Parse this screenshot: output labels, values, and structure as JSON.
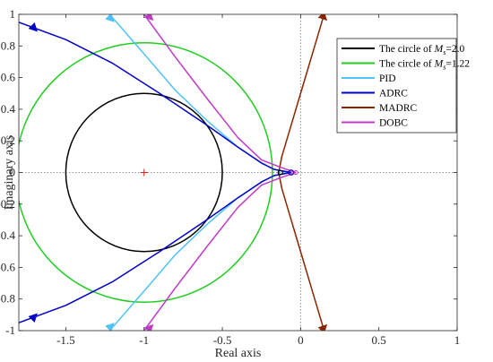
{
  "chart_data": {
    "type": "line",
    "title": "",
    "xlabel": "Real axis",
    "ylabel": "Imaginary axis",
    "xlim": [
      -1.8,
      1
    ],
    "ylim": [
      -1,
      1
    ],
    "xticks": [
      -1.5,
      -1,
      -0.5,
      0,
      0.5,
      1
    ],
    "xtick_labels": [
      "-1.5",
      "-1",
      "-0.5",
      "0",
      "0.5",
      "1"
    ],
    "yticks": [
      -1,
      -0.8,
      -0.6,
      -0.4,
      -0.2,
      0,
      0.2,
      0.4,
      0.6,
      0.8,
      1
    ],
    "ytick_labels": [
      "-1",
      "-0.8",
      "-0.6",
      "-0.4",
      "-0.2",
      "0",
      "0.2",
      "0.4",
      "0.6",
      "0.8",
      "1"
    ],
    "grid": false,
    "legend_position": "top-right",
    "critical_point": [
      -1,
      0
    ],
    "series": [
      {
        "name": "The circle of M_s=2.0",
        "legend": {
          "prefix": "The circle of ",
          "var": "M",
          "sub": "s",
          "suffix": "=2.0"
        },
        "kind": "circle",
        "center": [
          -1,
          0
        ],
        "radius": 0.5,
        "color": "#000000"
      },
      {
        "name": "The circle of M_s=1.22",
        "legend": {
          "prefix": "The circle of ",
          "var": "M",
          "sub": "s",
          "suffix": "=1.22"
        },
        "kind": "circle",
        "center": [
          -1,
          0
        ],
        "radius": 0.82,
        "color": "#22cc22"
      },
      {
        "name": "PID",
        "legend": {
          "prefix": "PID"
        },
        "kind": "curve",
        "color": "#4fc3f7",
        "mirror": true,
        "points": [
          [
            -1.22,
            1.0
          ],
          [
            -1.0,
            0.75
          ],
          [
            -0.8,
            0.52
          ],
          [
            -0.6,
            0.33
          ],
          [
            -0.4,
            0.16
          ],
          [
            -0.25,
            0.06
          ],
          [
            -0.17,
            0.02
          ],
          [
            -0.08,
            0.0
          ]
        ],
        "arrows": [
          [
            -1.21,
            0.97
          ]
        ]
      },
      {
        "name": "ADRC",
        "legend": {
          "prefix": "ADRC"
        },
        "kind": "curve",
        "color": "#0000c8",
        "mirror": true,
        "points": [
          [
            -1.8,
            0.95
          ],
          [
            -1.5,
            0.84
          ],
          [
            -1.2,
            0.69
          ],
          [
            -0.9,
            0.5
          ],
          [
            -0.6,
            0.3
          ],
          [
            -0.4,
            0.16
          ],
          [
            -0.25,
            0.06
          ],
          [
            -0.17,
            0.02
          ],
          [
            -0.06,
            0.0
          ]
        ],
        "arrows": [
          [
            -1.7,
            0.91
          ]
        ]
      },
      {
        "name": "MADRC",
        "legend": {
          "prefix": "MADRC"
        },
        "kind": "curve",
        "color": "#8b2500",
        "mirror": true,
        "points": [
          [
            0.15,
            1.0
          ],
          [
            0.09,
            0.8
          ],
          [
            0.03,
            0.6
          ],
          [
            -0.03,
            0.4
          ],
          [
            -0.09,
            0.2
          ],
          [
            -0.12,
            0.1
          ],
          [
            -0.14,
            0.0
          ]
        ],
        "arrows": [
          [
            0.15,
            0.98
          ]
        ]
      },
      {
        "name": "DOBC",
        "legend": {
          "prefix": "DOBC"
        },
        "kind": "curve",
        "color": "#c03ac8",
        "mirror": true,
        "points": [
          [
            -1.0,
            1.0
          ],
          [
            -0.8,
            0.73
          ],
          [
            -0.6,
            0.47
          ],
          [
            -0.4,
            0.22
          ],
          [
            -0.25,
            0.08
          ],
          [
            -0.12,
            0.03
          ],
          [
            -0.03,
            0.0
          ]
        ],
        "arrows": [
          [
            -0.96,
            0.98
          ]
        ]
      }
    ]
  }
}
